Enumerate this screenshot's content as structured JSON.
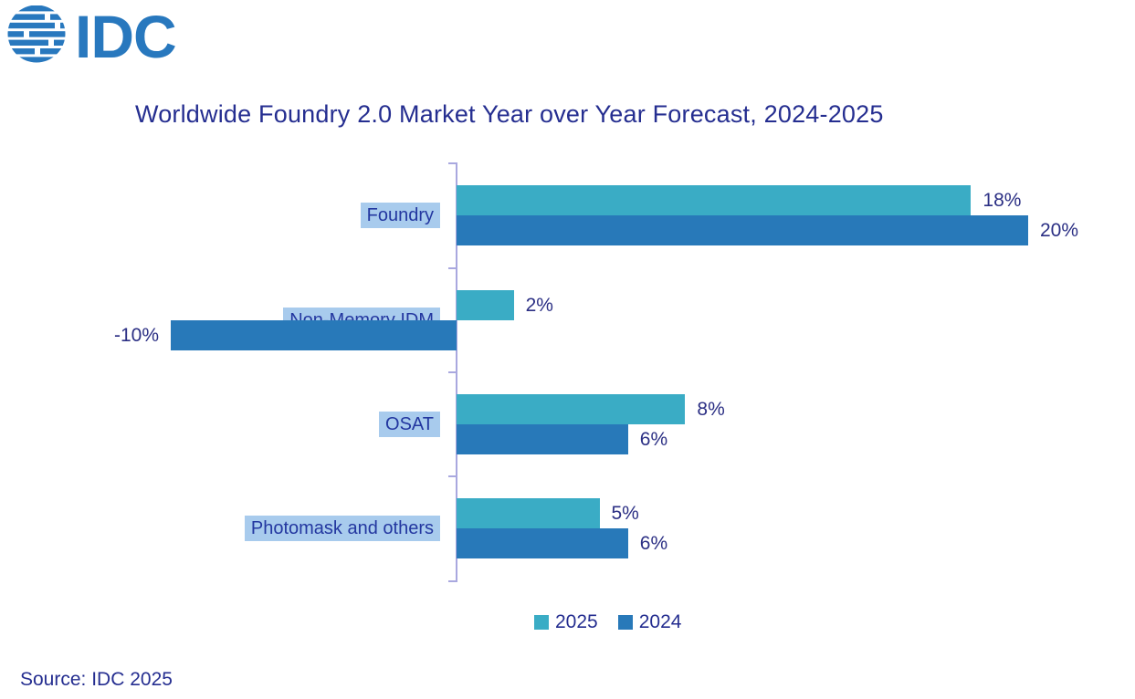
{
  "logo": {
    "text": "IDC",
    "color": "#2878BE",
    "icon": "idc-globe-icon"
  },
  "source": "Source: IDC 2025",
  "chart_data": {
    "type": "bar",
    "orientation": "horizontal",
    "title": "Worldwide Foundry 2.0 Market Year over Year Forecast, 2024-2025",
    "categories": [
      "Foundry",
      "Non-Memory IDM",
      "OSAT",
      "Photomask and others"
    ],
    "series": [
      {
        "name": "2025",
        "color": "#3AACC5",
        "values": [
          18,
          2,
          8,
          5
        ]
      },
      {
        "name": "2024",
        "color": "#2879B9",
        "values": [
          20,
          -10,
          6,
          6
        ]
      }
    ],
    "value_suffix": "%",
    "xlim": [
      -12,
      22
    ],
    "grid": false,
    "legend_position": "bottom",
    "axis_color": "#A9A8DF",
    "category_highlight_color": "#A8CBED",
    "value_label_color": "#2B2F84",
    "title_color": "#252E90"
  }
}
